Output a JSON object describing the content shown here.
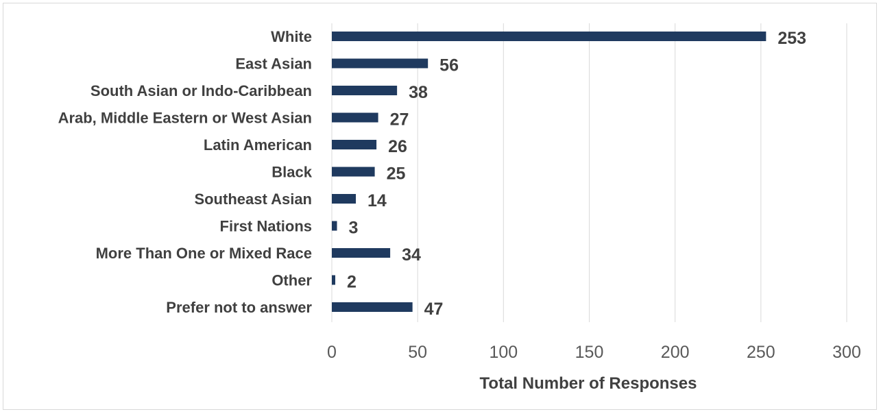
{
  "chart_data": {
    "type": "bar",
    "orientation": "horizontal",
    "title": "",
    "xlabel": "Total Number of Responses",
    "ylabel": "",
    "categories": [
      "White",
      "East Asian",
      "South Asian or Indo-Caribbean",
      "Arab, Middle Eastern or West Asian",
      "Latin American",
      "Black",
      "Southeast Asian",
      "First Nations",
      "More Than One or Mixed Race",
      "Other",
      "Prefer not to answer"
    ],
    "values": [
      253,
      56,
      38,
      27,
      26,
      25,
      14,
      3,
      34,
      2,
      47
    ],
    "xlim": [
      0,
      300
    ],
    "x_ticks": [
      0,
      50,
      100,
      150,
      200,
      250,
      300
    ],
    "grid": "vertical",
    "legend": "none",
    "bar_color": "#1f3a5f"
  }
}
